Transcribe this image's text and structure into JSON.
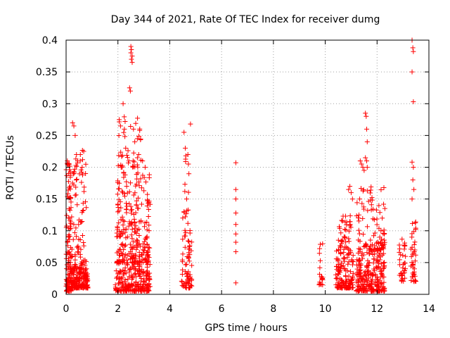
{
  "chart_data": {
    "type": "scatter",
    "title": "Day 344 of 2021, Rate Of TEC Index for receiver dumg",
    "xlabel": "GPS time / hours",
    "ylabel": "ROTI / TECUs",
    "xlim": [
      0,
      14
    ],
    "ylim": [
      0,
      0.4
    ],
    "xticks": [
      0,
      2,
      4,
      6,
      8,
      10,
      12,
      14
    ],
    "xtick_labels": [
      "0",
      "2",
      "4",
      "6",
      "8",
      "10",
      "12",
      "14"
    ],
    "yticks": [
      0,
      0.05,
      0.1,
      0.15,
      0.2,
      0.25,
      0.3,
      0.35,
      0.4
    ],
    "ytick_labels": [
      "0",
      "0.05",
      "0.1",
      "0.15",
      "0.2",
      "0.25",
      "0.3",
      "0.35",
      "0.4"
    ],
    "grid": true,
    "marker": "+",
    "color": "#ff0000",
    "clusters": [
      {
        "x_range": [
          0.0,
          0.2
        ],
        "y_range": [
          0.005,
          0.21
        ],
        "count": 120
      },
      {
        "x_range": [
          0.2,
          0.85
        ],
        "y_range": [
          0.01,
          0.04
        ],
        "count": 160
      },
      {
        "x_range": [
          0.2,
          0.8
        ],
        "y_range": [
          0.04,
          0.23
        ],
        "count": 90
      },
      {
        "x_range": [
          1.9,
          3.25
        ],
        "y_range": [
          0.005,
          0.05
        ],
        "count": 220
      },
      {
        "x_range": [
          1.95,
          3.25
        ],
        "y_range": [
          0.05,
          0.2
        ],
        "count": 260
      },
      {
        "x_range": [
          2.0,
          2.9
        ],
        "y_range": [
          0.2,
          0.28
        ],
        "count": 40
      },
      {
        "x_range": [
          4.45,
          4.85
        ],
        "y_range": [
          0.01,
          0.12
        ],
        "count": 70
      },
      {
        "x_range": [
          4.5,
          4.8
        ],
        "y_range": [
          0.12,
          0.23
        ],
        "count": 12
      },
      {
        "x_range": [
          9.75,
          9.9
        ],
        "y_range": [
          0.015,
          0.1
        ],
        "count": 20
      },
      {
        "x_range": [
          10.4,
          11.1
        ],
        "y_range": [
          0.01,
          0.07
        ],
        "count": 130
      },
      {
        "x_range": [
          10.5,
          11.0
        ],
        "y_range": [
          0.07,
          0.13
        ],
        "count": 40
      },
      {
        "x_range": [
          11.2,
          12.3
        ],
        "y_range": [
          0.005,
          0.07
        ],
        "count": 230
      },
      {
        "x_range": [
          11.2,
          12.3
        ],
        "y_range": [
          0.07,
          0.17
        ],
        "count": 90
      },
      {
        "x_range": [
          12.85,
          13.1
        ],
        "y_range": [
          0.02,
          0.09
        ],
        "count": 35
      },
      {
        "x_range": [
          13.3,
          13.5
        ],
        "y_range": [
          0.02,
          0.12
        ],
        "count": 40
      }
    ],
    "points": [
      [
        0.05,
        0.205
      ],
      [
        0.1,
        0.19
      ],
      [
        0.15,
        0.17
      ],
      [
        0.25,
        0.27
      ],
      [
        0.3,
        0.265
      ],
      [
        0.35,
        0.25
      ],
      [
        0.4,
        0.22
      ],
      [
        0.45,
        0.21
      ],
      [
        0.55,
        0.22
      ],
      [
        0.62,
        0.2
      ],
      [
        0.68,
        0.225
      ],
      [
        0.75,
        0.19
      ],
      [
        2.05,
        0.275
      ],
      [
        2.1,
        0.265
      ],
      [
        2.2,
        0.3
      ],
      [
        2.25,
        0.26
      ],
      [
        2.3,
        0.23
      ],
      [
        2.45,
        0.325
      ],
      [
        2.48,
        0.32
      ],
      [
        2.5,
        0.39
      ],
      [
        2.52,
        0.385
      ],
      [
        2.55,
        0.375
      ],
      [
        2.52,
        0.37
      ],
      [
        2.55,
        0.365
      ],
      [
        2.5,
        0.38
      ],
      [
        2.6,
        0.26
      ],
      [
        2.65,
        0.24
      ],
      [
        2.75,
        0.245
      ],
      [
        2.8,
        0.22
      ],
      [
        2.95,
        0.21
      ],
      [
        3.05,
        0.2
      ],
      [
        4.55,
        0.255
      ],
      [
        4.6,
        0.23
      ],
      [
        4.62,
        0.218
      ],
      [
        4.7,
        0.22
      ],
      [
        4.72,
        0.205
      ],
      [
        4.8,
        0.268
      ],
      [
        4.65,
        0.15
      ],
      [
        4.55,
        0.13
      ],
      [
        6.55,
        0.207
      ],
      [
        6.55,
        0.165
      ],
      [
        6.55,
        0.15
      ],
      [
        6.55,
        0.128
      ],
      [
        6.55,
        0.11
      ],
      [
        6.55,
        0.095
      ],
      [
        6.55,
        0.082
      ],
      [
        6.55,
        0.067
      ],
      [
        6.55,
        0.018
      ],
      [
        10.9,
        0.165
      ],
      [
        10.95,
        0.17
      ],
      [
        11.0,
        0.16
      ],
      [
        11.05,
        0.15
      ],
      [
        11.35,
        0.21
      ],
      [
        11.4,
        0.205
      ],
      [
        11.45,
        0.2
      ],
      [
        11.5,
        0.195
      ],
      [
        11.55,
        0.285
      ],
      [
        11.58,
        0.28
      ],
      [
        11.6,
        0.26
      ],
      [
        11.62,
        0.24
      ],
      [
        11.55,
        0.215
      ],
      [
        11.6,
        0.21
      ],
      [
        11.62,
        0.2
      ],
      [
        12.15,
        0.1
      ],
      [
        12.2,
        0.12
      ],
      [
        12.3,
        0.135
      ],
      [
        13.35,
        0.4
      ],
      [
        13.38,
        0.388
      ],
      [
        13.4,
        0.382
      ],
      [
        13.35,
        0.35
      ],
      [
        13.4,
        0.303
      ],
      [
        13.35,
        0.208
      ],
      [
        13.4,
        0.2
      ],
      [
        13.38,
        0.18
      ],
      [
        13.42,
        0.165
      ],
      [
        13.35,
        0.15
      ]
    ]
  }
}
